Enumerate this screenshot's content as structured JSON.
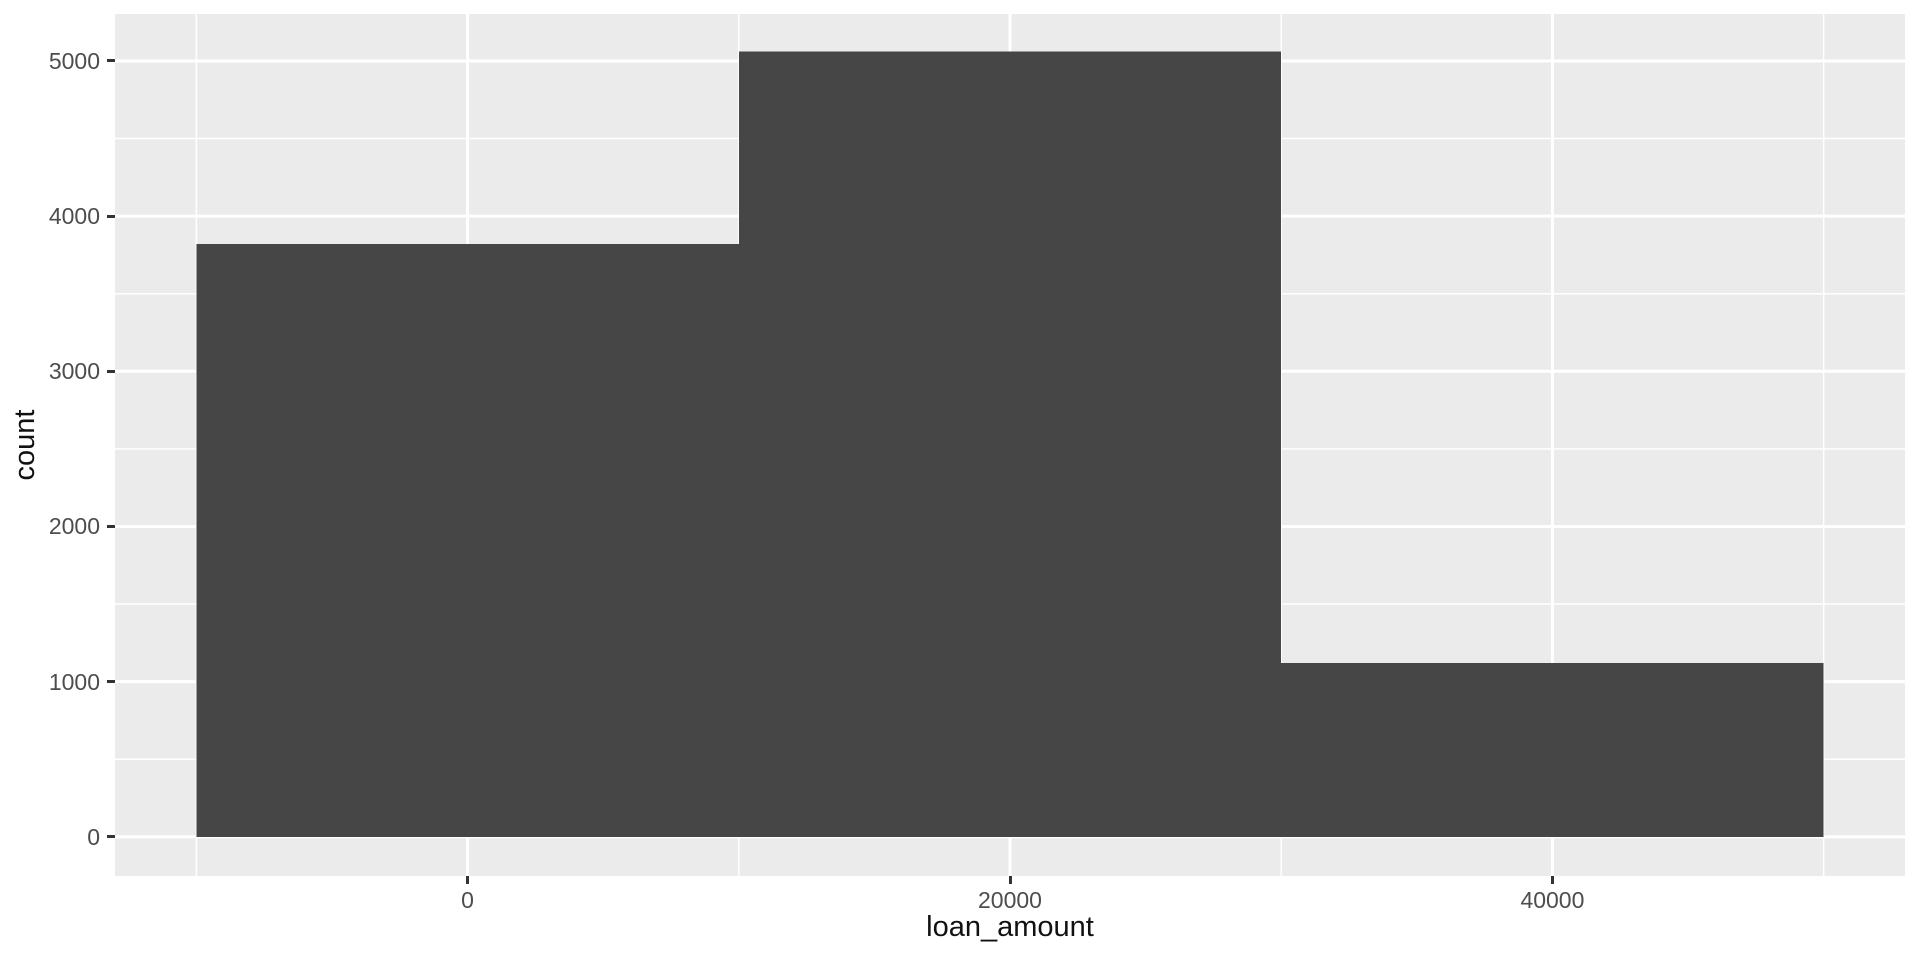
{
  "chart_data": {
    "type": "bar",
    "subtype": "histogram",
    "title": "",
    "xlabel": "loan_amount",
    "ylabel": "count",
    "bins": [
      {
        "x0": -10000,
        "x1": 10000,
        "count": 3820
      },
      {
        "x0": 10000,
        "x1": 30000,
        "count": 5060
      },
      {
        "x0": 30000,
        "x1": 50000,
        "count": 1120
      }
    ],
    "total_count": 10000,
    "binwidth": 20000,
    "x_ticks": [
      {
        "value": 0,
        "label": "0"
      },
      {
        "value": 20000,
        "label": "20000"
      },
      {
        "value": 40000,
        "label": "40000"
      }
    ],
    "y_ticks": [
      {
        "value": 0,
        "label": "0"
      },
      {
        "value": 1000,
        "label": "1000"
      },
      {
        "value": 2000,
        "label": "2000"
      },
      {
        "value": 3000,
        "label": "3000"
      },
      {
        "value": 4000,
        "label": "4000"
      },
      {
        "value": 5000,
        "label": "5000"
      }
    ],
    "x_minor_ticks": [
      -10000,
      10000,
      30000,
      50000
    ],
    "y_minor_ticks": [
      500,
      1500,
      2500,
      3500,
      4500
    ],
    "x_range": [
      -13000,
      53000
    ],
    "y_range": [
      -252.5,
      5302.5
    ],
    "grid": true,
    "legend": "none",
    "colors": {
      "bar_fill": "#464646",
      "panel_background": "#EBEBEB",
      "gridline": "#FFFFFF",
      "tick_label": "#4D4D4D",
      "axis_title": "#111111",
      "tick_mark": "#333333",
      "figure_background": "#FFFFFF"
    }
  }
}
